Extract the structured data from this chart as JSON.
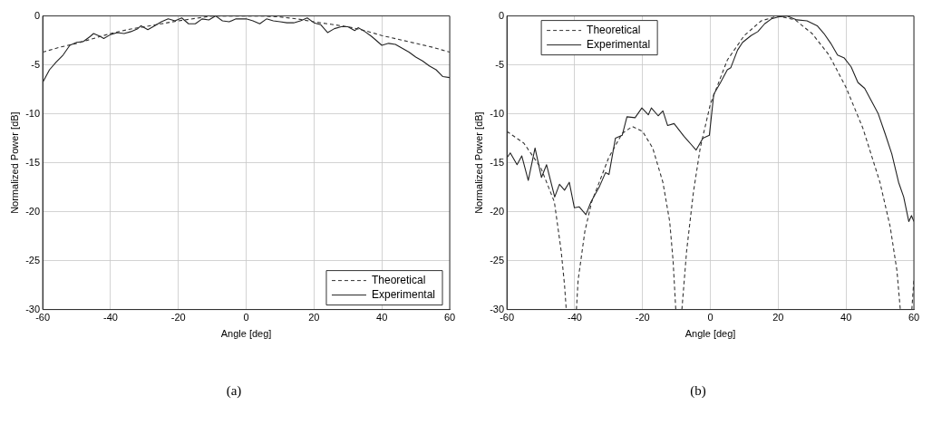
{
  "chart_data": [
    {
      "type": "line",
      "xlabel": "Angle [deg]",
      "ylabel": "Normalized Power [dB]",
      "xlim": [
        -60,
        60
      ],
      "xticks": [
        -60,
        -40,
        -20,
        0,
        20,
        40,
        60
      ],
      "ylim": [
        -30,
        0
      ],
      "yticks": [
        -30,
        -25,
        -20,
        -15,
        -10,
        -5,
        0
      ],
      "grid": true,
      "legend": "bottom right",
      "annotations": [
        "(a)"
      ],
      "series": [
        {
          "name": "Theoretical",
          "color": "#333333",
          "line_style": "dashed",
          "x": [
            -60,
            -55,
            -50,
            -45,
            -40,
            -35,
            -30,
            -25,
            -20,
            -15,
            -10,
            -5,
            0,
            5,
            10,
            15,
            20,
            25,
            30,
            35,
            40,
            45,
            50,
            55,
            60
          ],
          "values": [
            -3.7,
            -3.2,
            -2.8,
            -2.3,
            -1.8,
            -1.4,
            -1.1,
            -0.8,
            -0.5,
            -0.25,
            0,
            0,
            0,
            0,
            -0.1,
            -0.3,
            -0.6,
            -0.85,
            -1.1,
            -1.5,
            -2.0,
            -2.4,
            -2.8,
            -3.2,
            -3.7
          ]
        },
        {
          "name": "Experimental",
          "color": "#222222",
          "line_style": "solid",
          "x": [
            -60,
            -58,
            -56,
            -54,
            -52,
            -50,
            -48,
            -46,
            -45,
            -43,
            -42,
            -40,
            -38,
            -36,
            -34,
            -32,
            -31,
            -29,
            -27,
            -25,
            -23,
            -21,
            -19,
            -17,
            -15,
            -13,
            -11,
            -9,
            -7,
            -5,
            -3,
            0,
            2,
            4,
            6,
            8,
            10,
            12,
            14,
            16,
            18,
            20,
            22,
            24,
            26,
            28,
            30,
            32,
            33,
            35,
            37,
            39,
            40,
            42,
            44,
            46,
            48,
            50,
            52,
            54,
            56,
            58,
            60
          ],
          "values": [
            -6.8,
            -5.5,
            -4.7,
            -4,
            -3,
            -2.7,
            -2.6,
            -2.1,
            -1.8,
            -2.1,
            -2.3,
            -1.9,
            -1.7,
            -1.8,
            -1.6,
            -1.3,
            -1,
            -1.4,
            -1,
            -0.6,
            -0.3,
            -0.5,
            -0.2,
            -0.8,
            -0.8,
            -0.3,
            -0.4,
            0,
            -0.5,
            -0.6,
            -0.3,
            -0.3,
            -0.5,
            -0.8,
            -0.3,
            -0.5,
            -0.6,
            -0.7,
            -0.7,
            -0.5,
            -0.2,
            -0.7,
            -0.9,
            -1.7,
            -1.3,
            -1.1,
            -1.1,
            -1.5,
            -1.2,
            -1.6,
            -2.1,
            -2.7,
            -3,
            -2.8,
            -2.9,
            -3.3,
            -3.7,
            -4.2,
            -4.6,
            -5.1,
            -5.5,
            -6.2,
            -6.3
          ]
        }
      ]
    },
    {
      "type": "line",
      "xlabel": "Angle [deg]",
      "ylabel": "Normalized Power [dB]",
      "xlim": [
        -60,
        60
      ],
      "xticks": [
        -60,
        -40,
        -20,
        0,
        20,
        40,
        60
      ],
      "ylim": [
        -30,
        0
      ],
      "yticks": [
        -30,
        -25,
        -20,
        -15,
        -10,
        -5,
        0
      ],
      "grid": true,
      "legend": "top left",
      "annotations": [
        "(b)"
      ],
      "series": [
        {
          "name": "Theoretical",
          "color": "#333333",
          "line_style": "dashed",
          "x": [
            -60,
            -55,
            -50,
            -46,
            -44,
            -43,
            -42.5,
            -41,
            -39.5,
            -39,
            -37,
            -35,
            -30,
            -26,
            -23,
            -20,
            -17,
            -14,
            -12,
            -11,
            -10.2,
            -9.3,
            -8.4,
            -7,
            -5,
            -3,
            0,
            5,
            10,
            15,
            20,
            25,
            30,
            35,
            40,
            45,
            50,
            53,
            55,
            56,
            58,
            59.4,
            60
          ],
          "values": [
            -11.8,
            -13,
            -15.5,
            -19,
            -24,
            -27.5,
            -30,
            null,
            -30,
            -27,
            -22,
            -19,
            -14.5,
            -12,
            -11.3,
            -11.8,
            -13.5,
            -17,
            -21,
            -25,
            -30,
            null,
            -30,
            -24,
            -18,
            -13.5,
            -9,
            -4.5,
            -2,
            -0.5,
            0,
            -0.4,
            -1.8,
            -4,
            -7.3,
            -11.5,
            -17,
            -21.5,
            -26,
            -30,
            null,
            -30,
            -27
          ]
        },
        {
          "name": "Experimental",
          "color": "#222222",
          "line_style": "solid",
          "x": [
            -60,
            -59,
            -57,
            -55.6,
            -53.7,
            -51.7,
            -49.8,
            -48.3,
            -45.9,
            -44.5,
            -43,
            -41.6,
            -40.1,
            -38.7,
            -36.7,
            -35.2,
            -32.8,
            -30.9,
            -29.9,
            -28,
            -26,
            -24.6,
            -22.2,
            -20.2,
            -18.3,
            -17.4,
            -15.4,
            -14,
            -12.6,
            -10.7,
            -7.8,
            -4.2,
            -2.2,
            -0.3,
            1,
            3,
            5,
            6,
            8,
            9.5,
            12,
            14,
            16,
            18,
            20,
            22.5,
            25.5,
            28.5,
            31.5,
            33.5,
            35.5,
            37.5,
            39.5,
            41.5,
            43.5,
            45.5,
            47.5,
            49.5,
            51.5,
            53.5,
            55.5,
            57,
            58.5,
            59.3,
            60
          ],
          "values": [
            -14.5,
            -14,
            -15.2,
            -14.3,
            -16.8,
            -13.5,
            -16.5,
            -15.2,
            -18.5,
            -17.2,
            -17.8,
            -17,
            -19.6,
            -19.5,
            -20.3,
            -19,
            -17.5,
            -16,
            -16.2,
            -12.5,
            -12.2,
            -10.3,
            -10.4,
            -9.4,
            -10.1,
            -9.4,
            -10.2,
            -9.7,
            -11.2,
            -11,
            -12.3,
            -13.7,
            -12.5,
            -12.2,
            -8,
            -6.8,
            -5.5,
            -5.3,
            -3.5,
            -2.7,
            -2,
            -1.6,
            -0.8,
            -0.3,
            -0.1,
            0,
            -0.4,
            -0.5,
            -1,
            -1.8,
            -2.8,
            -4,
            -4.3,
            -5.2,
            -6.8,
            -7.4,
            -8.7,
            -10,
            -12,
            -14.1,
            -17,
            -18.5,
            -21,
            -20.4,
            -21
          ]
        }
      ]
    }
  ]
}
